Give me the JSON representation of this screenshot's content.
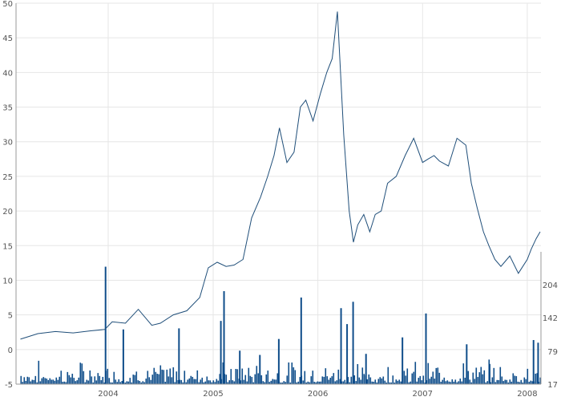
{
  "chart_data": {
    "type": "line",
    "title": "",
    "xlabel": "",
    "ylabel": "",
    "ylim": [
      -5,
      50
    ],
    "yticks": [
      "50",
      "45",
      "40",
      "35",
      "30",
      "25",
      "20",
      "15",
      "10",
      "5",
      "0",
      "-5"
    ],
    "xticks": [
      "2004",
      "2005",
      "2006",
      "2007",
      "2008"
    ],
    "grid": true,
    "legend": "none",
    "colors": {
      "line": "#1f4e79",
      "volume": "#0f4d8a",
      "grid": "#e6e6e6",
      "axis": "#999999"
    },
    "series": [
      {
        "x": [
          "2003-03-01",
          "2003-05-01",
          "2003-07-01",
          "2003-09-01",
          "2003-11-01",
          "2003-12-20",
          "2004-01-15",
          "2004-03-01",
          "2004-04-15",
          "2004-06-01",
          "2004-07-01",
          "2004-08-15",
          "2004-10-01",
          "2004-11-15",
          "2004-12-15",
          "2005-01-15",
          "2005-02-15",
          "2005-03-15",
          "2005-04-15",
          "2005-05-15",
          "2005-06-15",
          "2005-07-10",
          "2005-08-01",
          "2005-08-20",
          "2005-09-15",
          "2005-10-10",
          "2005-11-01",
          "2005-11-20",
          "2005-12-15",
          "2006-01-10",
          "2006-02-01",
          "2006-02-20",
          "2006-03-10",
          "2006-04-01",
          "2006-04-20",
          "2006-05-05",
          "2006-05-20",
          "2006-06-10",
          "2006-07-01",
          "2006-07-20",
          "2006-08-10",
          "2006-09-01",
          "2006-10-01",
          "2006-11-01",
          "2006-12-01",
          "2007-01-01",
          "2007-01-20",
          "2007-02-10",
          "2007-03-01",
          "2007-04-01",
          "2007-05-01",
          "2007-06-01",
          "2007-06-20",
          "2007-07-10",
          "2007-08-01",
          "2007-08-20",
          "2007-09-10",
          "2007-10-01",
          "2007-11-01",
          "2007-12-01",
          "2008-01-01",
          "2008-01-15",
          "2008-02-01",
          "2008-02-15"
        ],
        "y": [
          1.5,
          2.3,
          2.6,
          2.4,
          2.7,
          2.9,
          4.0,
          3.8,
          5.8,
          3.5,
          3.8,
          5.0,
          5.6,
          7.5,
          11.8,
          12.6,
          12.0,
          12.2,
          13.0,
          19.0,
          22.0,
          25.0,
          28.0,
          32.0,
          27.0,
          28.5,
          35.0,
          36.0,
          33.0,
          37.0,
          40.0,
          42.0,
          48.8,
          31.0,
          20.0,
          15.5,
          18.0,
          19.5,
          17.0,
          19.5,
          20.0,
          24.0,
          25.0,
          28.0,
          30.5,
          27.0,
          27.5,
          28.0,
          27.2,
          26.5,
          30.5,
          29.5,
          24.0,
          20.5,
          17.0,
          15.0,
          13.0,
          12.0,
          13.5,
          11.0,
          13.0,
          14.5,
          16.0,
          17.0
        ]
      }
    ],
    "volume": {
      "ylim": [
        17,
        266
      ],
      "yticks": [
        "204",
        "142",
        "79",
        "17"
      ],
      "x": [
        "2003-12-20",
        "2004-02-20",
        "2004-09-01",
        "2005-01-25",
        "2005-02-05",
        "2005-04-01",
        "2005-06-10",
        "2005-08-15",
        "2005-11-01",
        "2006-03-20",
        "2006-04-10",
        "2006-05-01",
        "2006-06-15",
        "2006-10-20",
        "2007-01-10",
        "2007-06-01",
        "2007-08-20",
        "2008-01-20",
        "2008-02-05"
      ],
      "values": [
        238,
        120,
        122,
        136,
        192,
        80,
        72,
        102,
        180,
        160,
        130,
        172,
        74,
        105,
        150,
        92,
        55,
        100,
        95
      ]
    }
  }
}
